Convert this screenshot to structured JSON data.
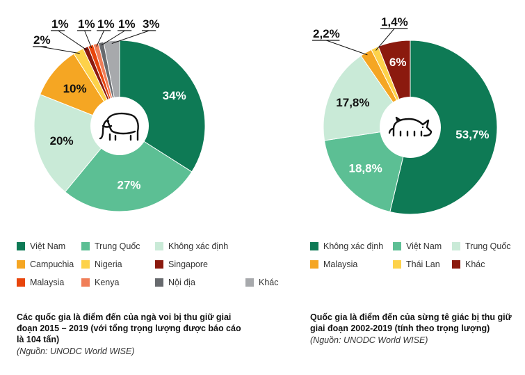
{
  "chart_data": [
    {
      "type": "pie",
      "title": "Các quốc gia là điểm đến của ngà voi bị thu giữ giai đoạn 2015 – 2019 (với tổng trọng lượng được báo cáo là 104 tấn)",
      "source": "(Nguồn: UNODC World WISE)",
      "icon": "elephant-icon",
      "slices": [
        {
          "name": "Việt Nam",
          "value": 34,
          "label": "34%",
          "color": "#0e7a55"
        },
        {
          "name": "Trung Quốc",
          "value": 27,
          "label": "27%",
          "color": "#5cbf94"
        },
        {
          "name": "Không xác định",
          "value": 20,
          "label": "20%",
          "color": "#c9ead7"
        },
        {
          "name": "Campuchia",
          "value": 10,
          "label": "10%",
          "color": "#f5a623"
        },
        {
          "name": "Nigeria",
          "value": 2,
          "label": "2%",
          "color": "#fdd24a"
        },
        {
          "name": "Singapore",
          "value": 1,
          "label": "1%",
          "color": "#8b1a0e"
        },
        {
          "name": "Malaysia",
          "value": 1,
          "label": "1%",
          "color": "#e8450c"
        },
        {
          "name": "Kenya",
          "value": 1,
          "label": "1%",
          "color": "#f07e58"
        },
        {
          "name": "Nội địa",
          "value": 1,
          "label": "1%",
          "color": "#676a6e"
        },
        {
          "name": "Khác",
          "value": 3,
          "label": "3%",
          "color": "#a7a9ac"
        }
      ],
      "legend": [
        [
          "Việt Nam",
          "Trung Quốc",
          "Không xác định"
        ],
        [
          "Campuchia",
          "Nigeria",
          "Singapore"
        ],
        [
          "Malaysia",
          "Kenya",
          "Nội địa",
          "Khác"
        ]
      ]
    },
    {
      "type": "pie",
      "title": "Quốc gia là điểm đến của sừng tê giác bị thu giữ giai đoạn 2002-2019 (tính theo trọng lượng)",
      "source": "(Nguồn: UNODC World WISE)",
      "icon": "rhino-icon",
      "slices": [
        {
          "name": "Không xác định",
          "value": 53.7,
          "label": "53,7%",
          "color": "#0e7a55"
        },
        {
          "name": "Việt Nam",
          "value": 18.8,
          "label": "18,8%",
          "color": "#5cbf94"
        },
        {
          "name": "Trung Quốc",
          "value": 17.8,
          "label": "17,8%",
          "color": "#c9ead7"
        },
        {
          "name": "Malaysia",
          "value": 2.2,
          "label": "2,2%",
          "color": "#f5a623"
        },
        {
          "name": "Thái Lan",
          "value": 1.4,
          "label": "1,4%",
          "color": "#fdd24a"
        },
        {
          "name": "Khác",
          "value": 6,
          "label": "6%",
          "color": "#8b1a0e"
        }
      ],
      "legend": [
        [
          "Không xác định",
          "Việt Nam",
          "Trung Quốc"
        ],
        [
          "Malaysia",
          "Thái Lan",
          "Khác"
        ]
      ]
    }
  ]
}
